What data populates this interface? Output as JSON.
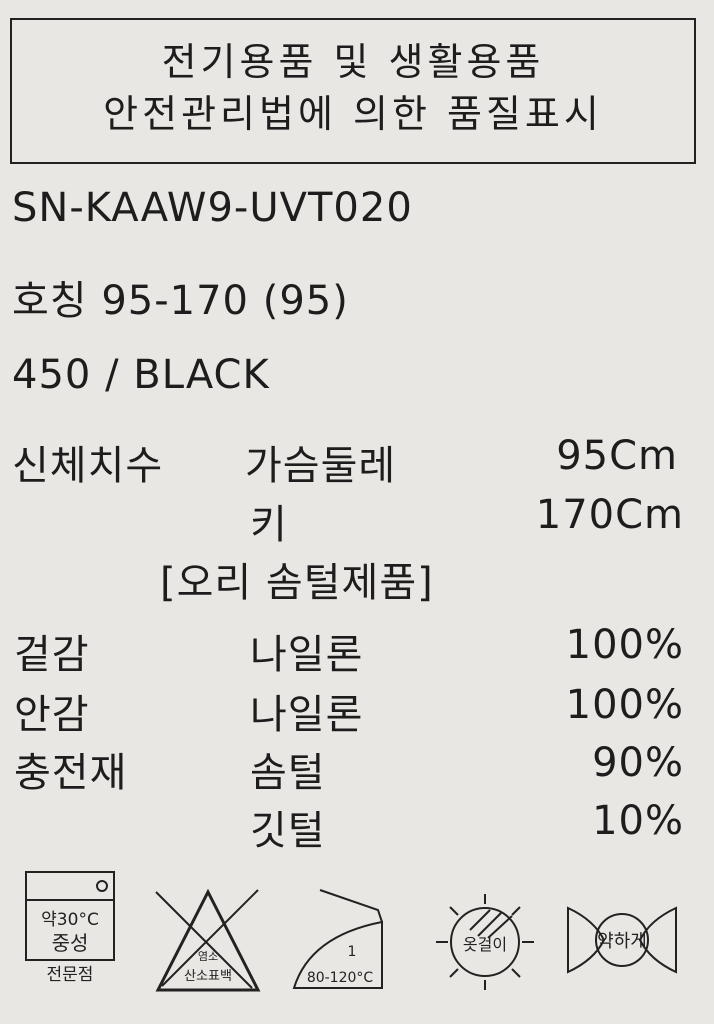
{
  "header": {
    "line1": "전기용품 및 생활용품",
    "line2": "안전관리법에 의한 품질표시"
  },
  "model": "SN-KAAW9-UVT020",
  "size": "호칭 95-170 (95)",
  "color": "450 / BLACK",
  "body_size": {
    "label": "신체치수",
    "chest_label": "가슴둘레",
    "chest_value": "95Cm",
    "height_label": "키",
    "height_value": "170Cm"
  },
  "product_type": "[오리 솜털제품]",
  "materials": [
    {
      "part": "겉감",
      "material": "나일론",
      "percent": "100%"
    },
    {
      "part": "안감",
      "material": "나일론",
      "percent": "100%"
    },
    {
      "part": "충전재",
      "material": "솜털",
      "percent": "90%"
    },
    {
      "part": "",
      "material": "깃털",
      "percent": "10%"
    }
  ],
  "care": {
    "wash": {
      "icon": "wash-tub-icon",
      "temp": "약30°C",
      "detergent": "중성",
      "note": "전문점"
    },
    "bleach": {
      "icon": "no-bleach-icon",
      "text1": "염소",
      "text2": "산소표백"
    },
    "iron": {
      "icon": "iron-icon",
      "setting": "1",
      "temp": "80-120°C"
    },
    "dry": {
      "icon": "shade-dry-icon",
      "text": "옷걸이"
    },
    "wring": {
      "icon": "wring-gently-icon",
      "text": "약하게"
    }
  }
}
